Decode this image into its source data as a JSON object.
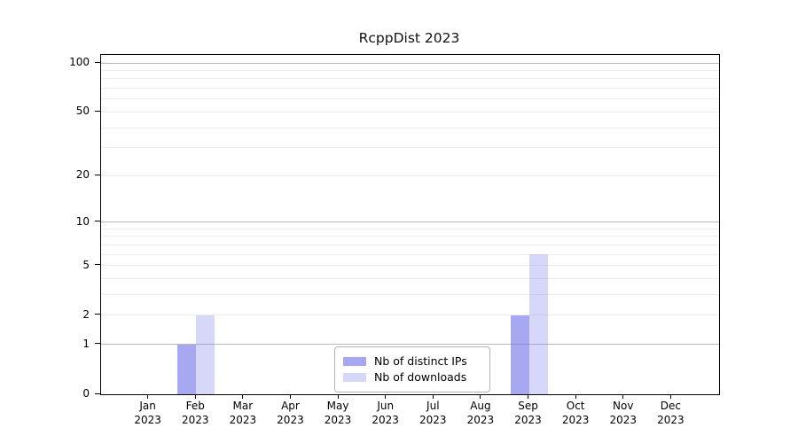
{
  "title": "RcppDist 2023",
  "chart_data": {
    "type": "bar",
    "title": "RcppDist 2023",
    "categories": [
      "Jan",
      "Feb",
      "Mar",
      "Apr",
      "May",
      "Jun",
      "Jul",
      "Aug",
      "Sep",
      "Oct",
      "Nov",
      "Dec"
    ],
    "category_year": "2023",
    "series": [
      {
        "name": "Nb of distinct IPs",
        "color": "rgba(122,122,235,0.65)",
        "values": [
          0,
          1,
          0,
          0,
          0,
          0,
          0,
          0,
          2,
          0,
          0,
          0
        ]
      },
      {
        "name": "Nb of downloads",
        "color": "rgba(122,122,235,0.30)",
        "values": [
          0,
          2,
          0,
          0,
          0,
          0,
          0,
          0,
          6,
          0,
          0,
          0
        ]
      }
    ],
    "yscale": "log1p",
    "ylim": [
      0,
      112
    ],
    "yticks": [
      0,
      1,
      2,
      5,
      10,
      20,
      50,
      100
    ],
    "y_major_gridlines": [
      1,
      10,
      100
    ],
    "y_minor_gridlines": [
      2,
      3,
      4,
      5,
      6,
      7,
      8,
      9,
      20,
      30,
      40,
      50,
      60,
      70,
      80,
      90
    ],
    "grid": "horizontal",
    "legend_position": "lower center",
    "colors": {
      "major_grid": "#b8b8b8",
      "minor_grid": "#ececec",
      "axis": "#000000",
      "background": "#ffffff"
    }
  }
}
